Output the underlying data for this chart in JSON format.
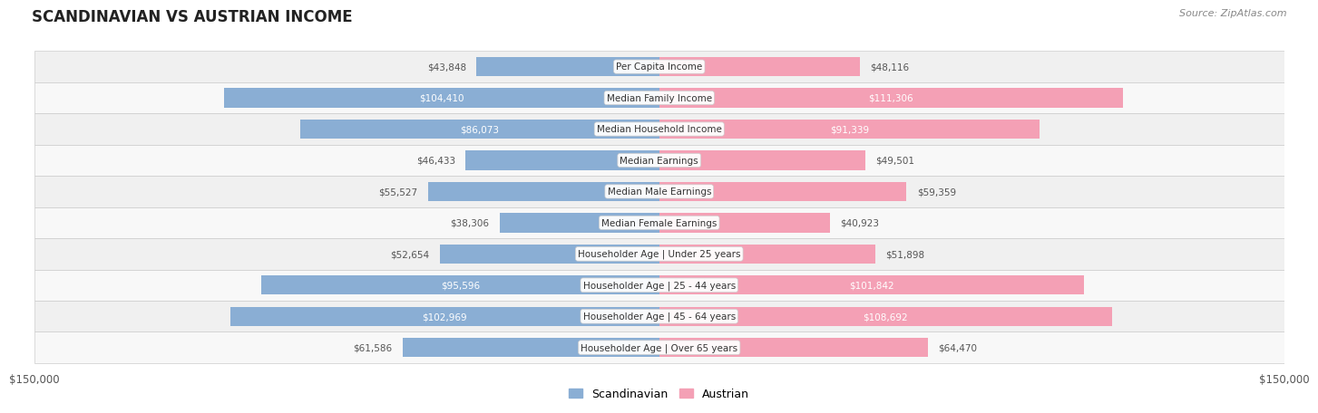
{
  "title": "SCANDINAVIAN VS AUSTRIAN INCOME",
  "source": "Source: ZipAtlas.com",
  "max_val": 150000,
  "categories": [
    "Per Capita Income",
    "Median Family Income",
    "Median Household Income",
    "Median Earnings",
    "Median Male Earnings",
    "Median Female Earnings",
    "Householder Age | Under 25 years",
    "Householder Age | 25 - 44 years",
    "Householder Age | 45 - 64 years",
    "Householder Age | Over 65 years"
  ],
  "scandinavian": [
    43848,
    104410,
    86073,
    46433,
    55527,
    38306,
    52654,
    95596,
    102969,
    61586
  ],
  "austrian": [
    48116,
    111306,
    91339,
    49501,
    59359,
    40923,
    51898,
    101842,
    108692,
    64470
  ],
  "scand_color": "#8aaed4",
  "austrian_color": "#f4a0b5",
  "label_color_inside": "#ffffff",
  "label_color_outside": "#555555",
  "high_threshold": 70000,
  "bg_row_color": "#f0f0f0",
  "bg_row_color_alt": "#f8f8f8",
  "bar_height": 0.62,
  "title_color": "#222222",
  "source_color": "#888888",
  "title_fontsize": 12,
  "label_fontsize": 7.5,
  "cat_fontsize": 7.5
}
